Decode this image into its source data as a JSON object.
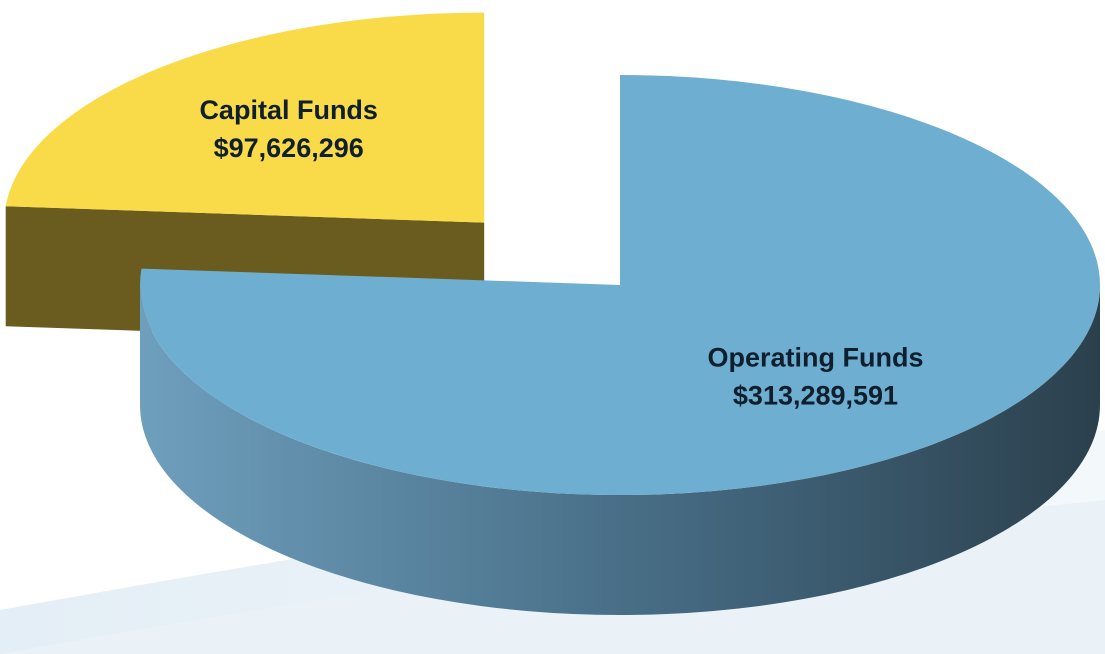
{
  "chart_data": {
    "type": "pie",
    "categories": [
      "Capital Funds",
      "Operating Funds"
    ],
    "values": [
      97626296,
      313289591
    ],
    "value_labels": [
      "$97,626,296",
      "$313,289,591"
    ],
    "colors": [
      "#f9da48",
      "#6eaed1"
    ]
  }
}
